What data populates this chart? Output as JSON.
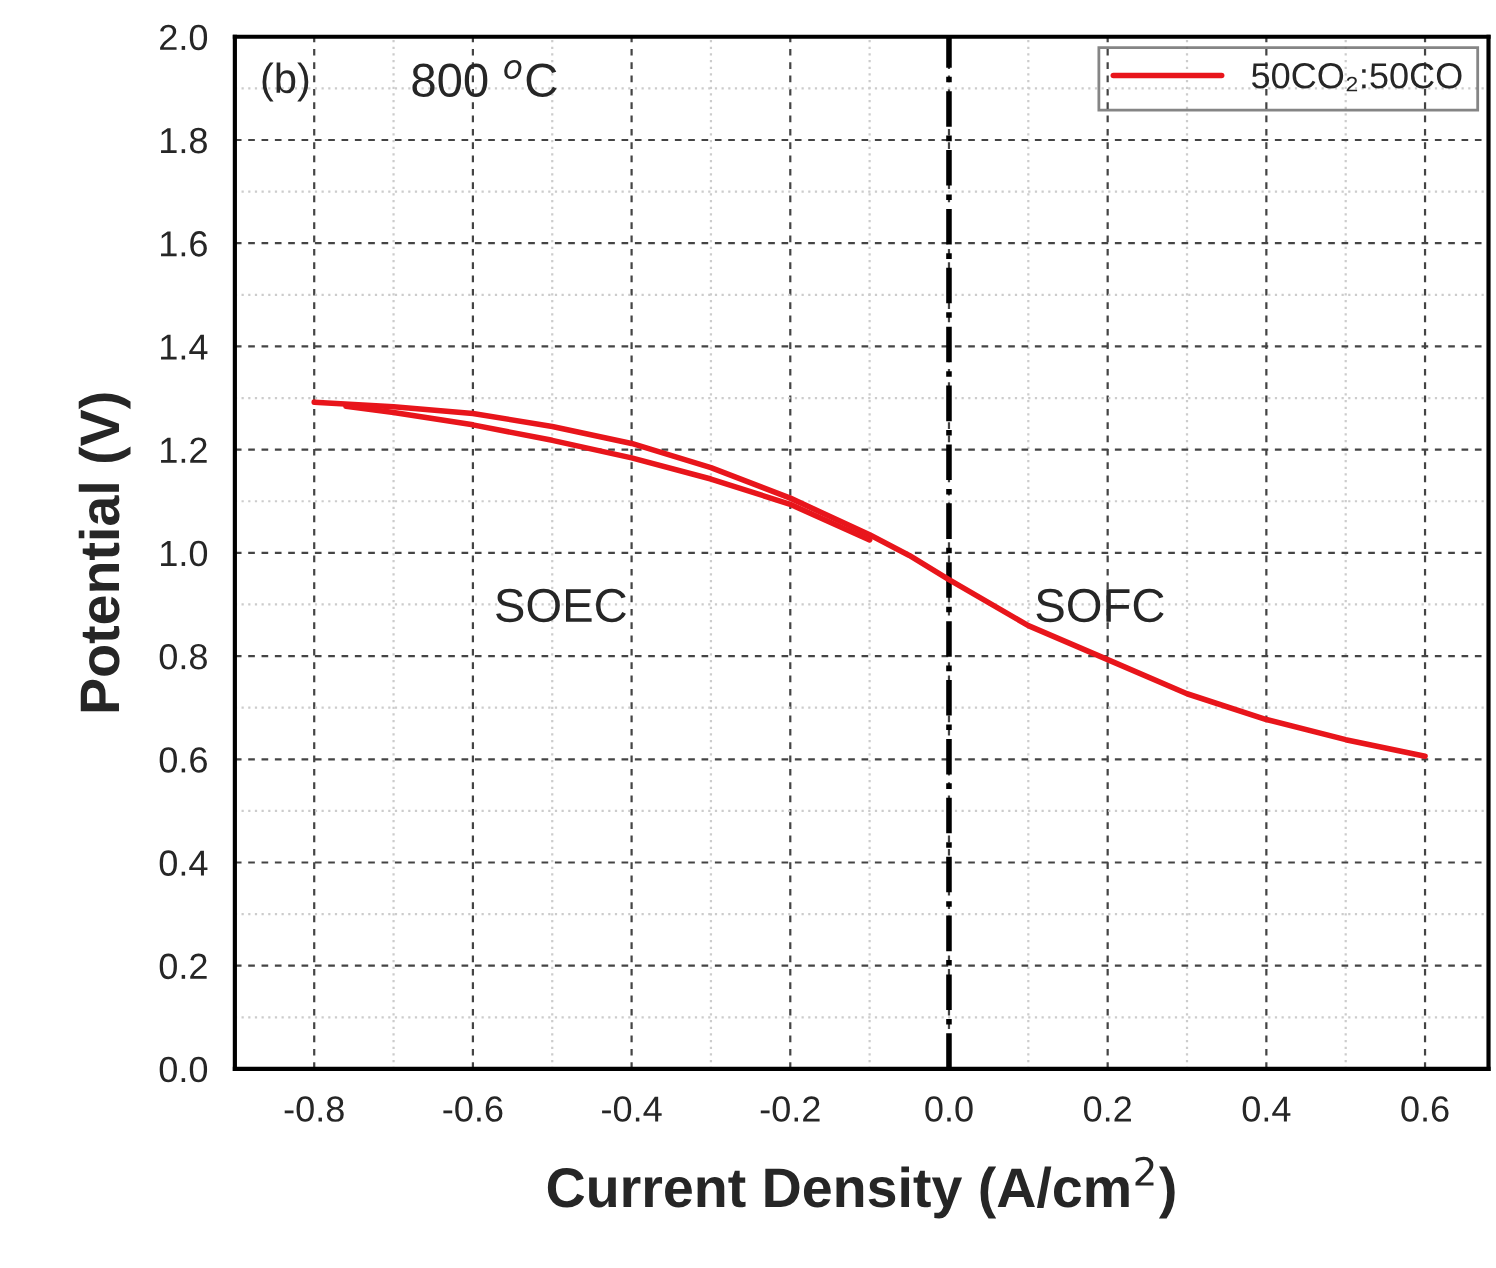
{
  "chart_data": {
    "type": "line",
    "xlabel": "Current Density (A/cm$^{2}$)",
    "ylabel": "Potential (V)",
    "series": [
      {
        "name": "50CO₂:50CO",
        "color": "#e8151b",
        "x": [
          -0.8,
          -0.7,
          -0.6,
          -0.5,
          -0.4,
          -0.3,
          -0.2,
          -0.1,
          -0.05,
          0.0,
          0.1,
          0.2,
          0.3,
          0.4,
          0.5,
          0.6
        ],
        "values": [
          1.292,
          1.283,
          1.27,
          1.245,
          1.212,
          1.165,
          1.106,
          1.035,
          0.995,
          0.948,
          0.859,
          0.793,
          0.727,
          0.677,
          0.638,
          0.606
        ]
      },
      {
        "color": "#e8151b",
        "x": [
          -0.1,
          -0.2,
          -0.3,
          -0.4,
          -0.5,
          -0.6,
          -0.7,
          -0.76
        ],
        "values": [
          1.025,
          1.094,
          1.143,
          1.184,
          1.218,
          1.248,
          1.272,
          1.284
        ]
      }
    ],
    "xlim": [
      -0.9,
      0.68
    ],
    "ylim": [
      0,
      2.0
    ],
    "xticks": [
      {
        "value": -0.8,
        "label": "-0.8"
      },
      {
        "value": -0.6,
        "label": "-0.6"
      },
      {
        "value": -0.4,
        "label": "-0.4"
      },
      {
        "value": -0.2,
        "label": "-0.2"
      },
      {
        "value": 0.0,
        "label": "0.0"
      },
      {
        "value": 0.2,
        "label": "0.2"
      },
      {
        "value": 0.4,
        "label": "0.4"
      },
      {
        "value": 0.6,
        "label": "0.6"
      }
    ],
    "yticks": [
      {
        "value": 0,
        "label": "0.0"
      },
      {
        "value": 0.2,
        "label": "0.2"
      },
      {
        "value": 0.4,
        "label": "0.4"
      },
      {
        "value": 0.6,
        "label": "0.6"
      },
      {
        "value": 0.8,
        "label": "0.8"
      },
      {
        "value": 1.0,
        "label": "1.0"
      },
      {
        "value": 1.2,
        "label": "1.2"
      },
      {
        "value": 1.4,
        "label": "1.4"
      },
      {
        "value": 1.6,
        "label": "1.6"
      },
      {
        "value": 1.8,
        "label": "1.8"
      },
      {
        "value": 2.0,
        "label": "2.0"
      }
    ],
    "ref_lines": [
      {
        "axis": "x",
        "value": 0.0,
        "color": "#000000",
        "line_style": "dashdot"
      }
    ],
    "annotations": [
      "(b)",
      "800 $^{o}$C",
      "SOEC",
      "SOFC"
    ],
    "grid": true,
    "legend": "top right",
    "marker": "none",
    "line_style": "solid"
  }
}
